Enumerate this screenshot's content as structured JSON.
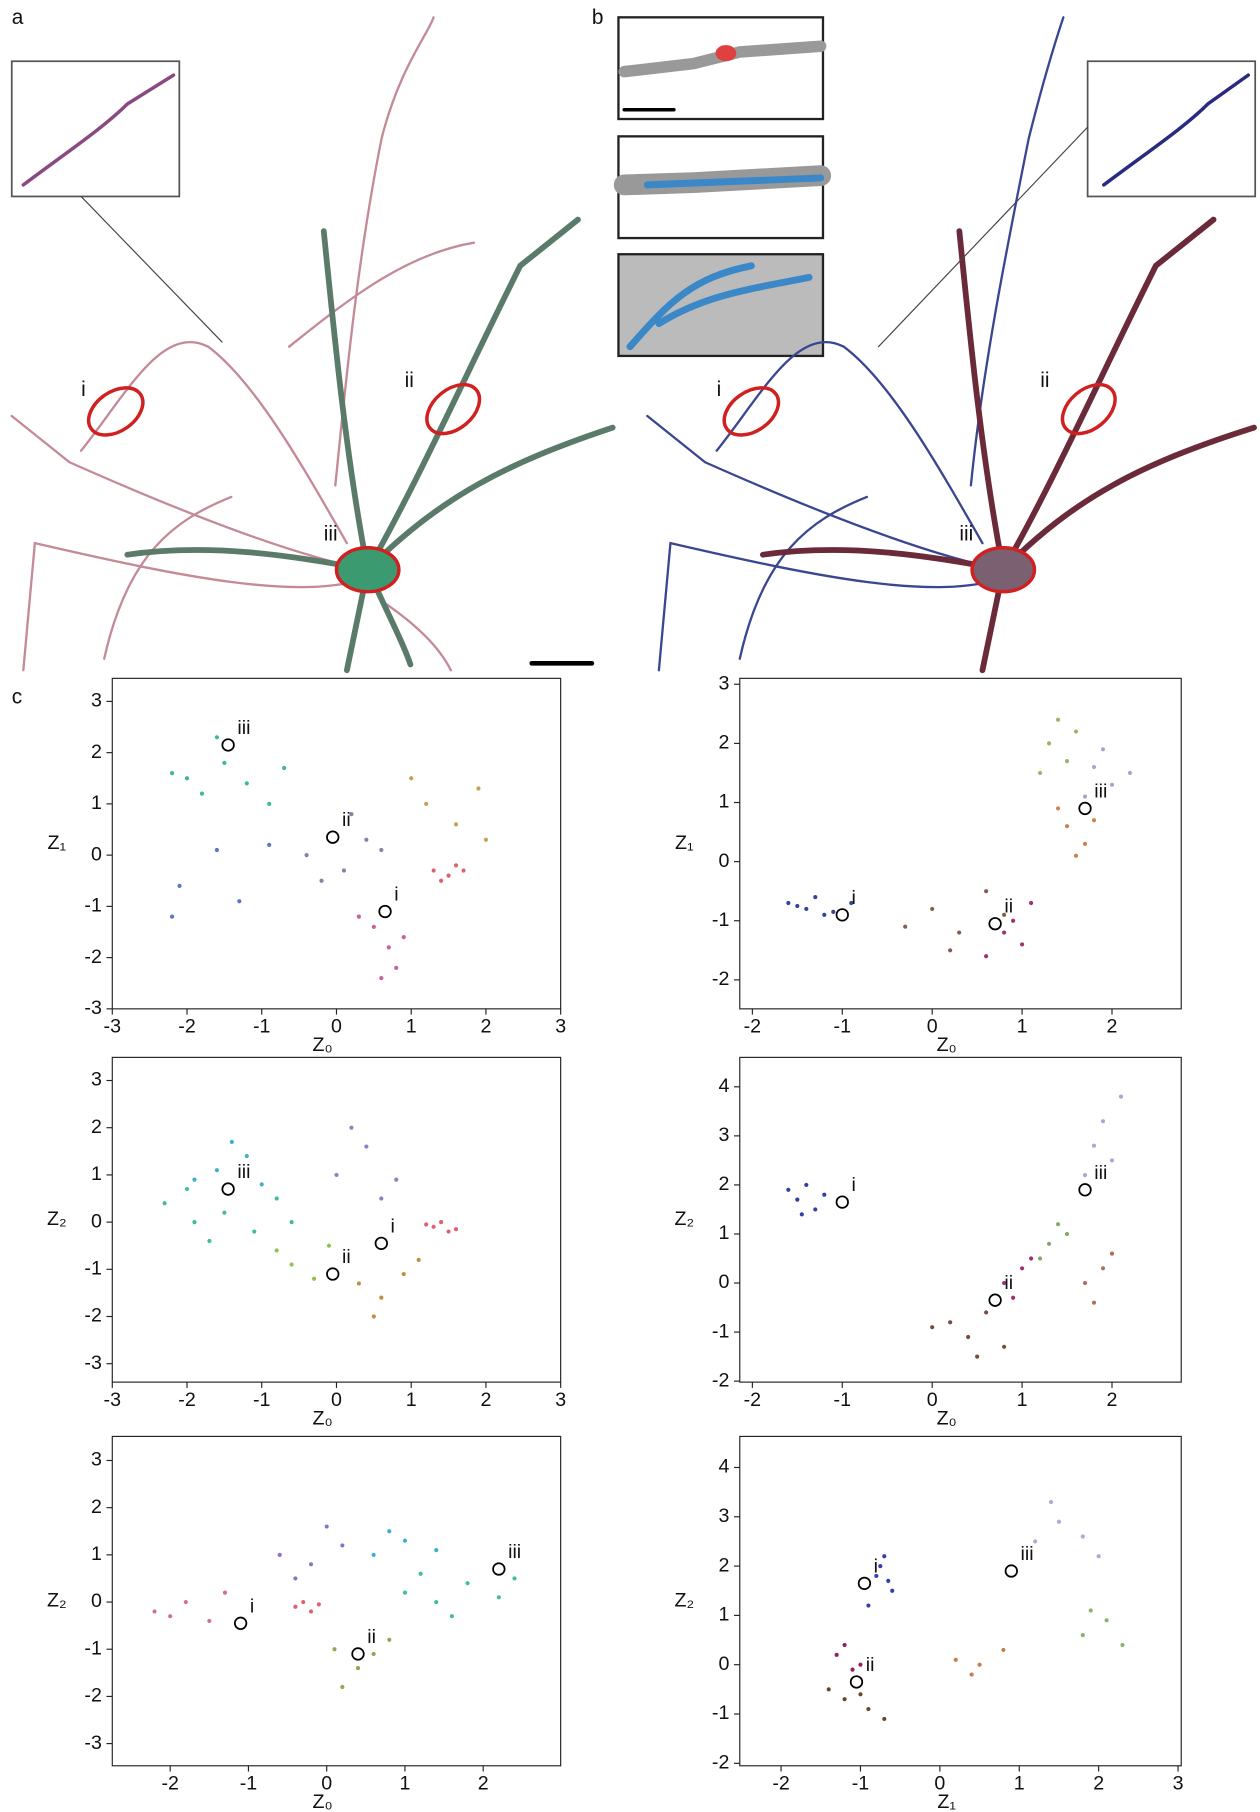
{
  "figure": {
    "panels": [
      "a",
      "b",
      "c"
    ],
    "labels_a": [
      "i",
      "ii",
      "iii"
    ],
    "labels_b": [
      "i",
      "ii",
      "iii"
    ]
  },
  "chart_data": [
    {
      "type": "scatter",
      "xlabel": "Z₀",
      "ylabel": "Z₁",
      "xlim": [
        -3,
        3
      ],
      "ylim": [
        -3,
        3.45
      ],
      "xticks": [
        -3,
        -2,
        -1,
        0,
        1,
        2,
        3
      ],
      "yticks": [
        -3,
        -2,
        -1,
        0,
        1,
        2,
        3
      ],
      "series": [
        {
          "color": "#3cb89a",
          "x": [
            -2.2,
            -1.8,
            -1.5,
            -1.2,
            -0.9,
            -1.6,
            -2.0,
            -0.7
          ],
          "y": [
            1.6,
            1.2,
            1.8,
            1.4,
            1.0,
            2.3,
            1.5,
            1.7
          ]
        },
        {
          "color": "#5a78c0",
          "x": [
            -2.1,
            -1.3,
            -0.9,
            -1.6,
            -2.2
          ],
          "y": [
            -0.6,
            -0.9,
            0.2,
            0.1,
            -1.2
          ]
        },
        {
          "color": "#8c80a0",
          "x": [
            -0.4,
            0.1,
            0.4,
            -0.2,
            0.6,
            0.2
          ],
          "y": [
            0.0,
            -0.3,
            0.3,
            -0.5,
            0.1,
            0.8
          ]
        },
        {
          "color": "#e0606e",
          "x": [
            1.3,
            1.5,
            1.6,
            1.4,
            1.7
          ],
          "y": [
            -0.3,
            -0.4,
            -0.2,
            -0.5,
            -0.3
          ]
        },
        {
          "color": "#c8609a",
          "x": [
            0.5,
            0.7,
            0.8,
            0.3,
            0.9,
            0.6
          ],
          "y": [
            -1.4,
            -1.8,
            -2.2,
            -1.2,
            -1.6,
            -2.4
          ]
        },
        {
          "color": "#c8a055",
          "x": [
            1.2,
            1.6,
            1.9,
            1.0,
            2.0
          ],
          "y": [
            1.0,
            0.6,
            1.3,
            1.5,
            0.3
          ]
        }
      ],
      "annotations": [
        {
          "text": "iii",
          "x": -1.45,
          "y": 2.15
        },
        {
          "text": "ii",
          "x": -0.05,
          "y": 0.35
        },
        {
          "text": "i",
          "x": 0.65,
          "y": -1.1
        }
      ]
    },
    {
      "type": "scatter",
      "xlabel": "Z₀",
      "ylabel": "Z₁",
      "xlim": [
        -2.14,
        2.77
      ],
      "ylim": [
        -2.49,
        3.1
      ],
      "xticks": [
        -2,
        -1,
        0,
        1,
        2
      ],
      "yticks": [
        -2,
        -1,
        0,
        1,
        2,
        3
      ],
      "series": [
        {
          "color": "#3344a0",
          "x": [
            -1.6,
            -1.4,
            -1.3,
            -1.2,
            -1.5,
            -1.1,
            -0.9
          ],
          "y": [
            -0.7,
            -0.8,
            -0.6,
            -0.9,
            -0.75,
            -0.85,
            -0.7
          ]
        },
        {
          "color": "#8a5a50",
          "x": [
            0,
            0.3,
            0.6,
            -0.3,
            0.8,
            0.2
          ],
          "y": [
            -0.8,
            -1.2,
            -0.5,
            -1.1,
            -0.9,
            -1.5
          ]
        },
        {
          "color": "#a03070",
          "x": [
            0.8,
            1.0,
            0.9,
            1.1,
            0.6
          ],
          "y": [
            -1.2,
            -1.4,
            -1.0,
            -0.7,
            -1.6
          ]
        },
        {
          "color": "#98b868",
          "x": [
            1.3,
            1.4,
            1.5,
            1.2,
            1.6
          ],
          "y": [
            2.0,
            2.4,
            1.7,
            1.5,
            2.2
          ]
        },
        {
          "color": "#b0a0d0",
          "x": [
            1.8,
            2.0,
            1.9,
            1.7,
            2.2
          ],
          "y": [
            1.6,
            1.3,
            1.9,
            1.1,
            1.5
          ]
        },
        {
          "color": "#d08050",
          "x": [
            1.5,
            1.7,
            1.8,
            1.6,
            1.4
          ],
          "y": [
            0.6,
            0.3,
            0.7,
            0.1,
            0.9
          ]
        }
      ],
      "annotations": [
        {
          "text": "i",
          "x": -1,
          "y": -0.9
        },
        {
          "text": "ii",
          "x": 0.7,
          "y": -1.05
        },
        {
          "text": "iii",
          "x": 1.7,
          "y": 0.9
        }
      ]
    },
    {
      "type": "scatter",
      "xlabel": "Z₀",
      "ylabel": "Z₂",
      "xlim": [
        -3,
        3
      ],
      "ylim": [
        -3.39,
        3.49
      ],
      "xticks": [
        -3,
        -2,
        -1,
        0,
        1,
        2,
        3
      ],
      "yticks": [
        -3,
        -2,
        -1,
        0,
        1,
        2,
        3
      ],
      "series": [
        {
          "color": "#40c090",
          "x": [
            -2.3,
            -1.9,
            -1.5,
            -1.1,
            -0.8,
            -1.7,
            -2.0,
            -0.6
          ],
          "y": [
            0.4,
            0.0,
            0.2,
            -0.2,
            0.5,
            -0.4,
            0.7,
            0.0
          ]
        },
        {
          "color": "#40b0c8",
          "x": [
            -1.6,
            -1.2,
            -1.9,
            -1.0,
            -1.4
          ],
          "y": [
            1.1,
            1.4,
            0.9,
            0.8,
            1.7
          ]
        },
        {
          "color": "#9080c0",
          "x": [
            0.0,
            0.4,
            0.8,
            0.2,
            0.6
          ],
          "y": [
            1.0,
            1.6,
            0.9,
            2.0,
            0.5
          ]
        },
        {
          "color": "#e06070",
          "x": [
            1.3,
            1.5,
            1.4,
            1.6,
            1.2
          ],
          "y": [
            -0.1,
            -0.2,
            0.0,
            -0.15,
            -0.05
          ]
        },
        {
          "color": "#c09040",
          "x": [
            0.3,
            0.6,
            0.9,
            0.5,
            1.1
          ],
          "y": [
            -1.3,
            -1.6,
            -1.1,
            -2.0,
            -0.8
          ]
        },
        {
          "color": "#90c050",
          "x": [
            -0.6,
            -0.3,
            -0.8,
            -0.1
          ],
          "y": [
            -0.9,
            -1.2,
            -0.6,
            -0.5
          ]
        }
      ],
      "annotations": [
        {
          "text": "iii",
          "x": -1.45,
          "y": 0.7
        },
        {
          "text": "i",
          "x": 0.6,
          "y": -0.45
        },
        {
          "text": "ii",
          "x": -0.05,
          "y": -1.1
        }
      ]
    },
    {
      "type": "scatter",
      "xlabel": "Z₀",
      "ylabel": "Z₂",
      "xlim": [
        -2.14,
        2.77
      ],
      "ylim": [
        -2.02,
        4.6
      ],
      "xticks": [
        -2,
        -1,
        0,
        1,
        2
      ],
      "yticks": [
        -2,
        -1,
        0,
        1,
        2,
        3,
        4
      ],
      "series": [
        {
          "color": "#3040a0",
          "x": [
            -1.5,
            -1.4,
            -1.3,
            -1.6,
            -1.2,
            -1.45
          ],
          "y": [
            1.7,
            2.0,
            1.5,
            1.9,
            1.8,
            1.4
          ]
        },
        {
          "color": "#7a4a40",
          "x": [
            0.2,
            0.4,
            0.6,
            0.0,
            0.8,
            0.5
          ],
          "y": [
            -0.8,
            -1.1,
            -0.6,
            -0.9,
            -1.3,
            -1.5
          ]
        },
        {
          "color": "#a03070",
          "x": [
            0.8,
            1.0,
            0.9,
            1.1
          ],
          "y": [
            0.0,
            0.3,
            -0.3,
            0.5
          ]
        },
        {
          "color": "#88a868",
          "x": [
            1.3,
            1.4,
            1.2,
            1.5
          ],
          "y": [
            0.8,
            1.2,
            0.5,
            1.0
          ]
        },
        {
          "color": "#a8a8d8",
          "x": [
            1.8,
            1.9,
            2.0,
            1.7,
            2.1
          ],
          "y": [
            2.8,
            3.3,
            2.5,
            2.2,
            3.8
          ]
        },
        {
          "color": "#b07050",
          "x": [
            1.7,
            1.9,
            1.8,
            2.0
          ],
          "y": [
            0.0,
            0.3,
            -0.4,
            0.6
          ]
        }
      ],
      "annotations": [
        {
          "text": "i",
          "x": -1,
          "y": 1.65
        },
        {
          "text": "ii",
          "x": 0.7,
          "y": -0.35
        },
        {
          "text": "iii",
          "x": 1.7,
          "y": 1.9
        }
      ]
    },
    {
      "type": "scatter",
      "xlabel": "Z₀",
      "ylabel": "Z₂",
      "xlim": [
        -2.74,
        2.99
      ],
      "ylim": [
        -3.47,
        3.51
      ],
      "xticks": [
        -2,
        -1,
        0,
        1,
        2
      ],
      "yticks": [
        -3,
        -2,
        -1,
        0,
        1,
        2,
        3
      ],
      "series": [
        {
          "color": "#40c090",
          "x": [
            1.0,
            1.4,
            1.8,
            2.2,
            1.6,
            2.4,
            1.2
          ],
          "y": [
            0.2,
            0.0,
            0.4,
            0.1,
            -0.3,
            0.5,
            0.6
          ]
        },
        {
          "color": "#40b0c8",
          "x": [
            0.6,
            1.0,
            1.4,
            0.8
          ],
          "y": [
            1.0,
            1.3,
            1.1,
            1.5
          ]
        },
        {
          "color": "#9070c0",
          "x": [
            -0.6,
            -0.2,
            0.2,
            -0.4,
            0.0
          ],
          "y": [
            1.0,
            0.8,
            1.2,
            0.5,
            1.6
          ]
        },
        {
          "color": "#e06070",
          "x": [
            -0.4,
            -0.2,
            -0.3,
            -0.1
          ],
          "y": [
            -0.1,
            -0.2,
            0.0,
            -0.05
          ]
        },
        {
          "color": "#d07090",
          "x": [
            -2.2,
            -1.8,
            -1.5,
            -2.0,
            -1.3
          ],
          "y": [
            -0.2,
            0.0,
            -0.4,
            -0.3,
            0.2
          ]
        },
        {
          "color": "#a0a050",
          "x": [
            0.1,
            0.4,
            0.6,
            0.2,
            0.8
          ],
          "y": [
            -1.0,
            -1.4,
            -1.1,
            -1.8,
            -0.8
          ]
        }
      ],
      "annotations": [
        {
          "text": "i",
          "x": -1.1,
          "y": -0.45
        },
        {
          "text": "ii",
          "x": 0.4,
          "y": -1.1
        },
        {
          "text": "iii",
          "x": 2.2,
          "y": 0.7
        }
      ]
    },
    {
      "type": "scatter",
      "xlabel": "Z₁",
      "ylabel": "Z₂",
      "xlim": [
        -2.52,
        3.04
      ],
      "ylim": [
        -2.05,
        4.63
      ],
      "xticks": [
        -2,
        -1,
        0,
        1,
        2,
        3
      ],
      "yticks": [
        -2,
        -1,
        0,
        1,
        2,
        3,
        4
      ],
      "series": [
        {
          "color": "#3040b0",
          "x": [
            -0.8,
            -0.7,
            -0.6,
            -0.9,
            -0.75,
            -0.65
          ],
          "y": [
            1.8,
            2.2,
            1.5,
            1.2,
            2.0,
            1.7
          ]
        },
        {
          "color": "#902060",
          "x": [
            -1.3,
            -1.1,
            -1.2,
            -1.0
          ],
          "y": [
            0.2,
            -0.1,
            0.4,
            0.0
          ]
        },
        {
          "color": "#704030",
          "x": [
            -1.2,
            -0.9,
            -0.7,
            -1.4,
            -1.0
          ],
          "y": [
            -0.7,
            -0.9,
            -1.1,
            -0.5,
            -0.6
          ]
        },
        {
          "color": "#c08050",
          "x": [
            0.2,
            0.5,
            0.8,
            0.4
          ],
          "y": [
            0.1,
            0.0,
            0.3,
            -0.2
          ]
        },
        {
          "color": "#b0a8d8",
          "x": [
            1.2,
            1.5,
            1.8,
            1.4,
            2.0
          ],
          "y": [
            2.5,
            2.9,
            2.6,
            3.3,
            2.2
          ]
        },
        {
          "color": "#90b070",
          "x": [
            1.8,
            2.1,
            2.3,
            1.9
          ],
          "y": [
            0.6,
            0.9,
            0.4,
            1.1
          ]
        }
      ],
      "annotations": [
        {
          "text": "i",
          "x": -0.95,
          "y": 1.65
        },
        {
          "text": "ii",
          "x": -1.05,
          "y": -0.35
        },
        {
          "text": "iii",
          "x": 0.9,
          "y": 1.9
        }
      ]
    }
  ]
}
